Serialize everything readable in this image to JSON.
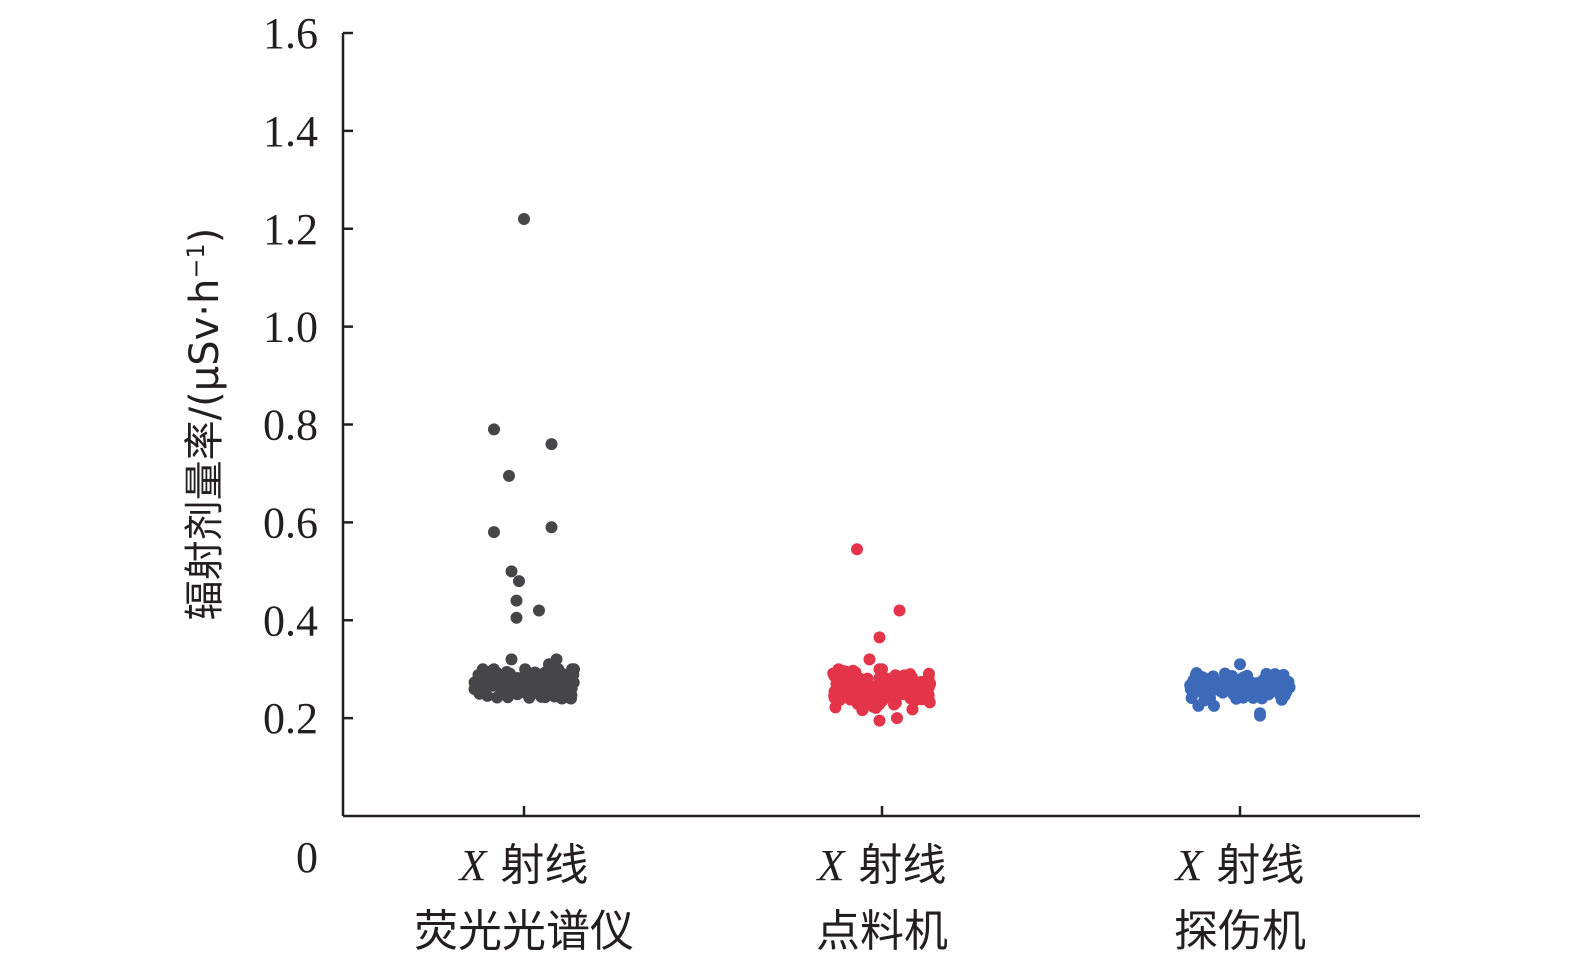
{
  "chart_data": {
    "type": "scatter",
    "ylabel_main": "辐射剂量率/(μSv·h",
    "ylabel_sup": "−1",
    "ylabel_close": ")",
    "ylim": [
      0,
      1.6
    ],
    "yticks": [
      "0",
      "0.2",
      "0.4",
      "0.6",
      "0.8",
      "1.0",
      "1.2",
      "1.4",
      "1.6"
    ],
    "grid": false,
    "categories": [
      {
        "prefix": "X",
        "line1": "射线",
        "line2": "荧光光谱仪"
      },
      {
        "prefix": "X",
        "line1": "射线",
        "line2": "点料机"
      },
      {
        "prefix": "X",
        "line1": "射线",
        "line2": "探伤机"
      }
    ],
    "series": [
      {
        "color": "#464648",
        "center": 0.27,
        "spread": 0.016,
        "count": 170,
        "clip": [
          0.24,
          0.3
        ],
        "outliers": [
          {
            "dx": 0.0,
            "y": 1.22
          },
          {
            "dx": -0.12,
            "y": 0.79
          },
          {
            "dx": 0.11,
            "y": 0.76
          },
          {
            "dx": -0.06,
            "y": 0.695
          },
          {
            "dx": -0.12,
            "y": 0.58
          },
          {
            "dx": 0.11,
            "y": 0.59
          },
          {
            "dx": -0.05,
            "y": 0.5
          },
          {
            "dx": -0.02,
            "y": 0.48
          },
          {
            "dx": -0.03,
            "y": 0.44
          },
          {
            "dx": 0.06,
            "y": 0.42
          },
          {
            "dx": -0.03,
            "y": 0.405
          },
          {
            "dx": -0.05,
            "y": 0.32
          },
          {
            "dx": 0.13,
            "y": 0.32
          },
          {
            "dx": 0.2,
            "y": 0.3
          },
          {
            "dx": 0.1,
            "y": 0.31
          }
        ]
      },
      {
        "color": "#e4344a",
        "center": 0.26,
        "spread": 0.018,
        "count": 150,
        "clip": [
          0.21,
          0.3
        ],
        "outliers": [
          {
            "dx": -0.1,
            "y": 0.545
          },
          {
            "dx": 0.07,
            "y": 0.42
          },
          {
            "dx": -0.01,
            "y": 0.365
          },
          {
            "dx": -0.05,
            "y": 0.32
          },
          {
            "dx": 0.0,
            "y": 0.3
          },
          {
            "dx": 0.06,
            "y": 0.2
          },
          {
            "dx": -0.01,
            "y": 0.195
          }
        ]
      },
      {
        "color": "#3d6ab8",
        "center": 0.265,
        "spread": 0.013,
        "count": 120,
        "clip": [
          0.225,
          0.295
        ],
        "outliers": [
          {
            "dx": 0.0,
            "y": 0.31
          },
          {
            "dx": 0.14,
            "y": 0.29
          },
          {
            "dx": -0.15,
            "y": 0.265
          },
          {
            "dx": -0.18,
            "y": 0.26
          },
          {
            "dx": 0.08,
            "y": 0.21
          },
          {
            "dx": 0.08,
            "y": 0.205
          }
        ]
      }
    ]
  }
}
